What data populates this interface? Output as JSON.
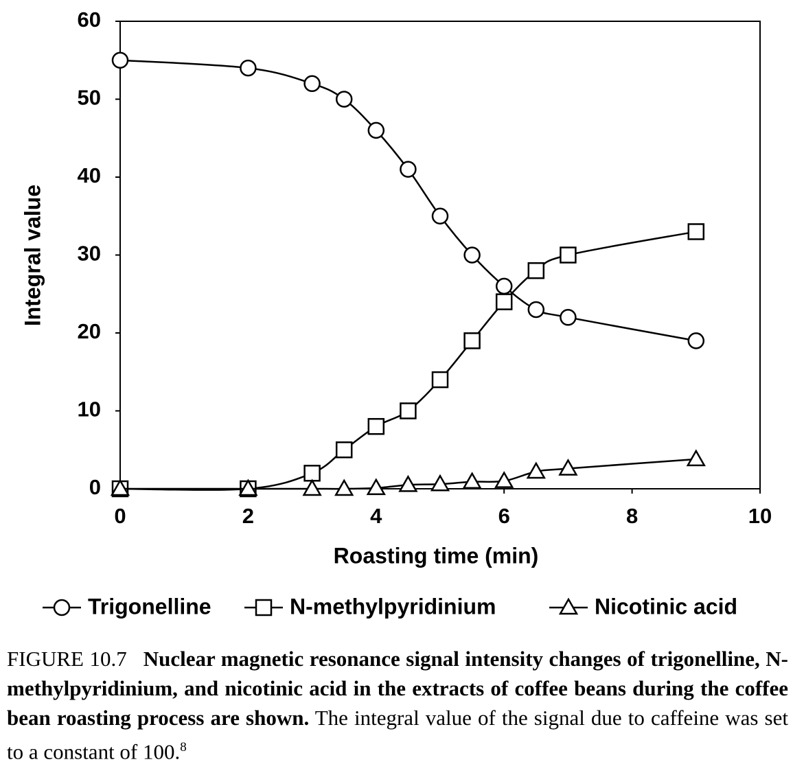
{
  "chart_data": {
    "type": "line",
    "x_label": "Roasting time (min)",
    "y_label": "Integral value",
    "x": [
      0,
      2,
      3,
      3.5,
      4,
      4.5,
      5,
      5.5,
      6,
      6.5,
      7,
      9
    ],
    "series": [
      {
        "name": "Trigonelline",
        "color": "#000000",
        "marker": "circle",
        "values": [
          55,
          54,
          52,
          50,
          46,
          41,
          35,
          30,
          26,
          23,
          22,
          19
        ]
      },
      {
        "name": "N-methylpyridinium",
        "color": "#000000",
        "marker": "square",
        "values": [
          0,
          0,
          2,
          5,
          8,
          10,
          14,
          19,
          24,
          28,
          30,
          33
        ]
      },
      {
        "name": "Nicotinic acid",
        "color": "#000000",
        "marker": "triangle",
        "values": [
          0,
          0,
          0,
          0,
          0.1,
          0.5,
          0.6,
          0.9,
          1.0,
          2.2,
          2.6,
          3.8
        ]
      }
    ],
    "xlim": [
      0,
      10
    ],
    "xticks": [
      0,
      2,
      4,
      6,
      8,
      10
    ],
    "ylim": [
      0,
      60
    ],
    "yticks": [
      0,
      10,
      20,
      30,
      40,
      50,
      60
    ],
    "smooth": true,
    "legend": "bottom"
  },
  "caption": {
    "label": "FIGURE 10.7",
    "bold_text": "Nuclear magnetic resonance signal intensity changes of trigonelline, N-methylpyridinium, and nicotinic acid in the extracts of coffee beans during the coffee bean roasting process are shown.",
    "text": "The integral value of the signal due to caffeine was set to a constant of 100.",
    "reference": "8"
  }
}
